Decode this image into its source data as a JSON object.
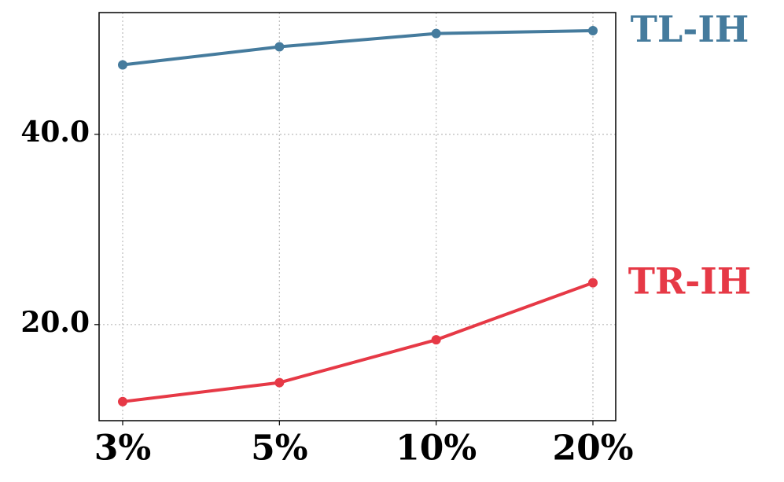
{
  "chart_data": {
    "type": "line",
    "categories": [
      "3%",
      "5%",
      "10%",
      "20%"
    ],
    "series": [
      {
        "name": "TL-IH",
        "color": "#457b9d",
        "values": [
          47.3,
          49.2,
          50.6,
          50.9
        ]
      },
      {
        "name": "TR-IH",
        "color": "#e63946",
        "values": [
          11.9,
          13.9,
          18.4,
          24.4
        ]
      }
    ],
    "ylim": [
      9.9,
      52.8
    ],
    "yticks": [
      {
        "value": 20,
        "label": "20.0"
      },
      {
        "value": 40,
        "label": "40.0"
      }
    ],
    "grid": true
  }
}
